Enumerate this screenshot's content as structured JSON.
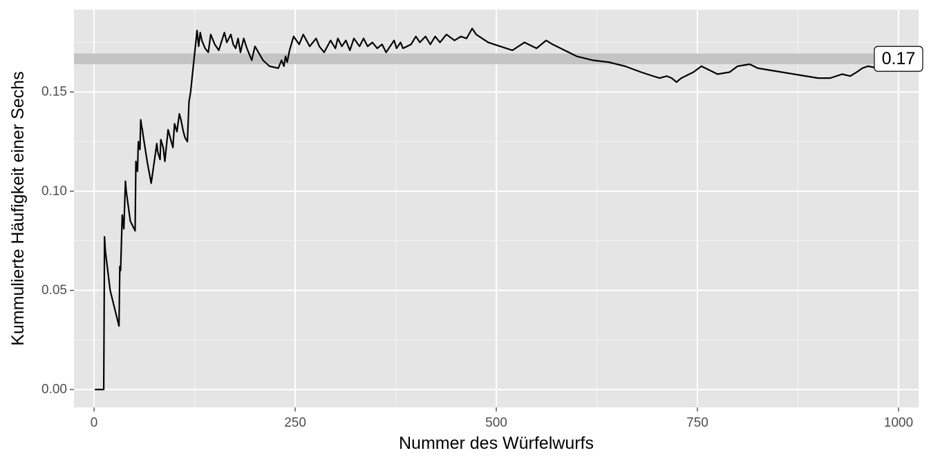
{
  "chart_data": {
    "type": "line",
    "title": "",
    "xlabel": "Nummer des Würfelwurfs",
    "ylabel": "Kummulierte Häufigkeit einer Sechs",
    "xlim": [
      -25,
      1025
    ],
    "ylim": [
      -0.009,
      0.1915
    ],
    "x_ticks": [
      0,
      250,
      500,
      750,
      1000
    ],
    "x_tick_labels": [
      "0",
      "250",
      "500",
      "750",
      "1000"
    ],
    "y_ticks": [
      0.0,
      0.05,
      0.1,
      0.15
    ],
    "y_tick_labels": [
      "0.00",
      "0.05",
      "0.10",
      "0.15"
    ],
    "grid": true,
    "reference_band": {
      "center": 0.1667,
      "half_width": 0.0027,
      "color": "#c4c4c4"
    },
    "annotation": {
      "text": "0.17",
      "x": 1000,
      "y": 0.1667
    },
    "line_color": "#000000",
    "panel_color": "#e5e5e5",
    "grid_color": "#ffffff",
    "series": [
      {
        "x": [
          1,
          12,
          13,
          14,
          20,
          31,
          32,
          33,
          35,
          37,
          39,
          40,
          45,
          51,
          52,
          54,
          55,
          57,
          58,
          59,
          60,
          61,
          66,
          71,
          78,
          79,
          82,
          83,
          86,
          88,
          92,
          94,
          98,
          100,
          103,
          106,
          108,
          111,
          113,
          116,
          118,
          120,
          128,
          130,
          132,
          134,
          136,
          138,
          142,
          145,
          150,
          155,
          162,
          165,
          170,
          173,
          176,
          179,
          182,
          186,
          190,
          196,
          200,
          210,
          218,
          229,
          233,
          236,
          238,
          240,
          243,
          248,
          255,
          260,
          264,
          268,
          276,
          280,
          286,
          294,
          300,
          303,
          308,
          313,
          318,
          323,
          330,
          335,
          340,
          346,
          352,
          358,
          363,
          368,
          373,
          376,
          381,
          384,
          394,
          400,
          405,
          412,
          418,
          424,
          430,
          438,
          448,
          456,
          463,
          470,
          475,
          490,
          505,
          520,
          535,
          550,
          562,
          570,
          585,
          600,
          620,
          640,
          660,
          680,
          695,
          703,
          712,
          718,
          724,
          730,
          745,
          755,
          765,
          775,
          790,
          800,
          815,
          825,
          840,
          855,
          870,
          885,
          900,
          915,
          930,
          940,
          948,
          955,
          962,
          975,
          990,
          1000
        ],
        "y": [
          0,
          0,
          0.077,
          0.07,
          0.05,
          0.032,
          0.062,
          0.06,
          0.088,
          0.081,
          0.105,
          0.1,
          0.085,
          0.08,
          0.115,
          0.11,
          0.125,
          0.121,
          0.136,
          0.133,
          0.131,
          0.128,
          0.115,
          0.104,
          0.124,
          0.12,
          0.116,
          0.126,
          0.122,
          0.115,
          0.131,
          0.128,
          0.122,
          0.134,
          0.13,
          0.139,
          0.136,
          0.13,
          0.127,
          0.125,
          0.145,
          0.15,
          0.181,
          0.173,
          0.18,
          0.176,
          0.174,
          0.172,
          0.17,
          0.179,
          0.174,
          0.171,
          0.18,
          0.175,
          0.179,
          0.174,
          0.172,
          0.177,
          0.17,
          0.177,
          0.172,
          0.166,
          0.173,
          0.166,
          0.163,
          0.162,
          0.166,
          0.163,
          0.168,
          0.165,
          0.171,
          0.178,
          0.174,
          0.179,
          0.176,
          0.173,
          0.177,
          0.173,
          0.17,
          0.176,
          0.172,
          0.177,
          0.173,
          0.176,
          0.171,
          0.177,
          0.173,
          0.177,
          0.173,
          0.175,
          0.172,
          0.174,
          0.17,
          0.173,
          0.176,
          0.172,
          0.175,
          0.172,
          0.174,
          0.178,
          0.175,
          0.178,
          0.174,
          0.178,
          0.175,
          0.179,
          0.176,
          0.178,
          0.177,
          0.182,
          0.179,
          0.175,
          0.173,
          0.171,
          0.175,
          0.172,
          0.176,
          0.174,
          0.171,
          0.168,
          0.166,
          0.165,
          0.163,
          0.16,
          0.158,
          0.157,
          0.158,
          0.157,
          0.155,
          0.157,
          0.16,
          0.163,
          0.161,
          0.159,
          0.16,
          0.163,
          0.164,
          0.162,
          0.161,
          0.16,
          0.159,
          0.158,
          0.157,
          0.157,
          0.159,
          0.158,
          0.16,
          0.162,
          0.163,
          0.162,
          0.161,
          0.162
        ]
      }
    ]
  }
}
